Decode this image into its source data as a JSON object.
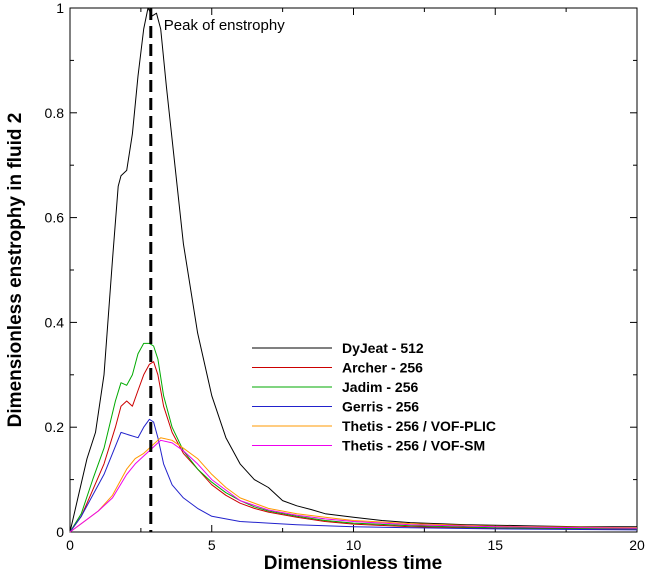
{
  "chart_data": {
    "type": "line",
    "xlabel": "Dimensionless time",
    "ylabel": "Dimensionless enstrophy in fluid 2",
    "xlim": [
      0,
      20
    ],
    "ylim": [
      0,
      1
    ],
    "xticks": [
      0,
      5,
      10,
      15,
      20
    ],
    "yticks": [
      0,
      0.2,
      0.4,
      0.6,
      0.8,
      1
    ],
    "xtick_labels": [
      "0",
      "5",
      "10",
      "15",
      "20"
    ],
    "ytick_labels": [
      "0",
      "0.2",
      "0.4",
      "0.6",
      "0.8",
      "1"
    ],
    "grid": false,
    "legend_position": "center-right",
    "annotation": {
      "text": "Peak of enstrophy",
      "x": 2.85
    },
    "series": [
      {
        "name": "DyJeat - 512",
        "color": "#000000",
        "x": [
          0,
          0.3,
          0.6,
          0.9,
          1.2,
          1.5,
          1.7,
          1.8,
          2.0,
          2.2,
          2.4,
          2.6,
          2.75,
          2.9,
          3.05,
          3.2,
          3.4,
          3.7,
          4.0,
          4.5,
          5.0,
          5.5,
          6.0,
          6.5,
          7.0,
          7.5,
          8.0,
          8.5,
          9.0,
          10.0,
          11.0,
          12.0,
          14.0,
          16.0,
          18.0,
          20.0
        ],
        "y": [
          0,
          0.07,
          0.14,
          0.19,
          0.3,
          0.52,
          0.66,
          0.68,
          0.69,
          0.76,
          0.87,
          0.96,
          1.0,
          0.985,
          0.99,
          0.96,
          0.85,
          0.7,
          0.55,
          0.38,
          0.26,
          0.18,
          0.13,
          0.1,
          0.085,
          0.06,
          0.05,
          0.043,
          0.035,
          0.028,
          0.022,
          0.018,
          0.014,
          0.012,
          0.01,
          0.01
        ]
      },
      {
        "name": "Archer - 256",
        "color": "#cc0000",
        "x": [
          0,
          0.4,
          0.8,
          1.2,
          1.6,
          1.8,
          2.0,
          2.2,
          2.4,
          2.6,
          2.8,
          2.95,
          3.1,
          3.3,
          3.6,
          4.0,
          4.5,
          5.0,
          5.5,
          6.0,
          6.5,
          7.0,
          8.0,
          9.0,
          10.0,
          12.0,
          15.0,
          20.0
        ],
        "y": [
          0,
          0.03,
          0.08,
          0.13,
          0.2,
          0.24,
          0.25,
          0.24,
          0.27,
          0.3,
          0.32,
          0.325,
          0.3,
          0.24,
          0.19,
          0.15,
          0.12,
          0.09,
          0.07,
          0.055,
          0.045,
          0.038,
          0.028,
          0.02,
          0.015,
          0.01,
          0.007,
          0.005
        ]
      },
      {
        "name": "Jadim - 256",
        "color": "#00aa00",
        "x": [
          0,
          0.4,
          0.8,
          1.2,
          1.6,
          1.8,
          2.0,
          2.2,
          2.4,
          2.6,
          2.8,
          2.95,
          3.1,
          3.3,
          3.6,
          4.0,
          4.5,
          5.0,
          5.5,
          6.0,
          6.5,
          7.0,
          8.0,
          9.0,
          10.0,
          12.0,
          15.0,
          20.0
        ],
        "y": [
          0,
          0.035,
          0.1,
          0.16,
          0.25,
          0.285,
          0.28,
          0.3,
          0.34,
          0.36,
          0.36,
          0.355,
          0.33,
          0.26,
          0.2,
          0.155,
          0.12,
          0.095,
          0.075,
          0.06,
          0.048,
          0.04,
          0.03,
          0.022,
          0.017,
          0.012,
          0.008,
          0.006
        ]
      },
      {
        "name": "Gerris - 256",
        "color": "#2222cc",
        "x": [
          0,
          0.4,
          0.8,
          1.2,
          1.5,
          1.8,
          2.1,
          2.4,
          2.6,
          2.8,
          2.95,
          3.1,
          3.3,
          3.6,
          4.0,
          4.5,
          5.0,
          5.5,
          6.0,
          7.0,
          8.0,
          9.0,
          10.0,
          12.0,
          15.0,
          20.0
        ],
        "y": [
          0,
          0.03,
          0.07,
          0.11,
          0.15,
          0.19,
          0.185,
          0.18,
          0.2,
          0.215,
          0.21,
          0.18,
          0.13,
          0.09,
          0.065,
          0.045,
          0.03,
          0.025,
          0.02,
          0.017,
          0.014,
          0.012,
          0.01,
          0.008,
          0.006,
          0.004
        ]
      },
      {
        "name": "Thetis - 256 / VOF-PLIC",
        "color": "#ff9900",
        "x": [
          0,
          0.5,
          1.0,
          1.5,
          2.0,
          2.3,
          2.6,
          2.9,
          3.2,
          3.6,
          4.0,
          4.5,
          5.0,
          5.5,
          6.0,
          7.0,
          8.0,
          9.0,
          10.0,
          12.0,
          15.0,
          20.0
        ],
        "y": [
          0,
          0.02,
          0.04,
          0.07,
          0.12,
          0.14,
          0.15,
          0.165,
          0.18,
          0.175,
          0.16,
          0.14,
          0.11,
          0.085,
          0.065,
          0.045,
          0.035,
          0.028,
          0.022,
          0.016,
          0.011,
          0.008
        ]
      },
      {
        "name": "Thetis - 256 / VOF-SM",
        "color": "#ee00ee",
        "x": [
          0,
          0.5,
          1.0,
          1.5,
          2.0,
          2.3,
          2.6,
          2.9,
          3.2,
          3.6,
          4.0,
          4.5,
          5.0,
          5.5,
          6.0,
          7.0,
          8.0,
          9.0,
          10.0,
          12.0,
          15.0,
          20.0
        ],
        "y": [
          0,
          0.02,
          0.04,
          0.065,
          0.11,
          0.13,
          0.145,
          0.16,
          0.175,
          0.17,
          0.155,
          0.13,
          0.1,
          0.08,
          0.06,
          0.042,
          0.032,
          0.025,
          0.02,
          0.014,
          0.01,
          0.007
        ]
      }
    ]
  }
}
